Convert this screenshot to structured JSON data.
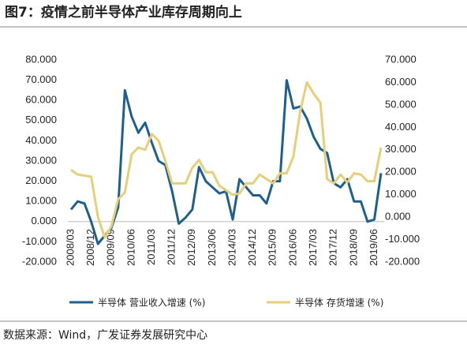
{
  "chart_data": {
    "type": "line",
    "title": "图7：疫情之前半导体产业库存周期向上",
    "source": "数据来源：Wind，广发证券发展研究中心",
    "categories": [
      "2008/03",
      null,
      null,
      "2008/12",
      null,
      null,
      "2009/09",
      null,
      null,
      "2010/06",
      null,
      null,
      "2011/03",
      null,
      null,
      "2011/12",
      null,
      null,
      "2012/09",
      null,
      null,
      "2013/06",
      null,
      null,
      "2014/03",
      null,
      null,
      "2014/12",
      null,
      null,
      "2015/09",
      null,
      null,
      "2016/06",
      null,
      null,
      "2017/03",
      null,
      null,
      "2017/12",
      null,
      null,
      "2018/09",
      null,
      null,
      "2019/06",
      null
    ],
    "series": [
      {
        "name": "半导体 营业收入增速 (%)",
        "color": "#1f5f8e",
        "axis": "y",
        "values": [
          6,
          10,
          9,
          0,
          -11,
          -7,
          -3,
          7,
          65,
          52,
          44,
          49,
          39,
          30,
          28,
          15,
          -1,
          2,
          6,
          27,
          20,
          17,
          14,
          15,
          1,
          21,
          17,
          13,
          13,
          9,
          20,
          20,
          70,
          56,
          57,
          51,
          42,
          36,
          34,
          19,
          17,
          21,
          10,
          10,
          0,
          1,
          24
        ]
      },
      {
        "name": "半导体 存货增速 (%)",
        "color": "#e6cf78",
        "axis": "y2",
        "values": [
          21,
          19,
          18.5,
          18,
          0,
          -9,
          -4,
          8,
          11,
          28,
          31,
          30,
          37,
          34,
          25,
          15,
          15,
          15,
          22,
          25.5,
          20,
          20,
          14,
          12,
          10,
          10.5,
          15,
          15,
          19,
          17,
          15,
          19.5,
          19.5,
          27,
          47,
          60,
          55,
          51,
          17,
          15,
          19,
          15.5,
          19.5,
          19,
          16,
          16,
          31
        ]
      }
    ],
    "ylim": [
      -20,
      80
    ],
    "yticks": [
      {
        "value": -20,
        "label": "-20.000"
      },
      {
        "value": -10,
        "label": "-10.000"
      },
      {
        "value": 0,
        "label": "0.000"
      },
      {
        "value": 10,
        "label": "10.000"
      },
      {
        "value": 20,
        "label": "20.000"
      },
      {
        "value": 30,
        "label": "30.000"
      },
      {
        "value": 40,
        "label": "40.000"
      },
      {
        "value": 50,
        "label": "50.000"
      },
      {
        "value": 60,
        "label": "60.000"
      },
      {
        "value": 70,
        "label": "70.000"
      },
      {
        "value": 80,
        "label": "80.000"
      }
    ],
    "y2lim": [
      -20,
      70
    ],
    "y2ticks": [
      {
        "value": -20,
        "label": "-20.000"
      },
      {
        "value": -10,
        "label": "-10.000"
      },
      {
        "value": 0,
        "label": "0.000"
      },
      {
        "value": 10,
        "label": "10.000"
      },
      {
        "value": 20,
        "label": "20.000"
      },
      {
        "value": 30,
        "label": "30.000"
      },
      {
        "value": 40,
        "label": "40.000"
      },
      {
        "value": 50,
        "label": "50.000"
      },
      {
        "value": 60,
        "label": "60.000"
      },
      {
        "value": 70,
        "label": "70.000"
      }
    ],
    "grid": false
  }
}
